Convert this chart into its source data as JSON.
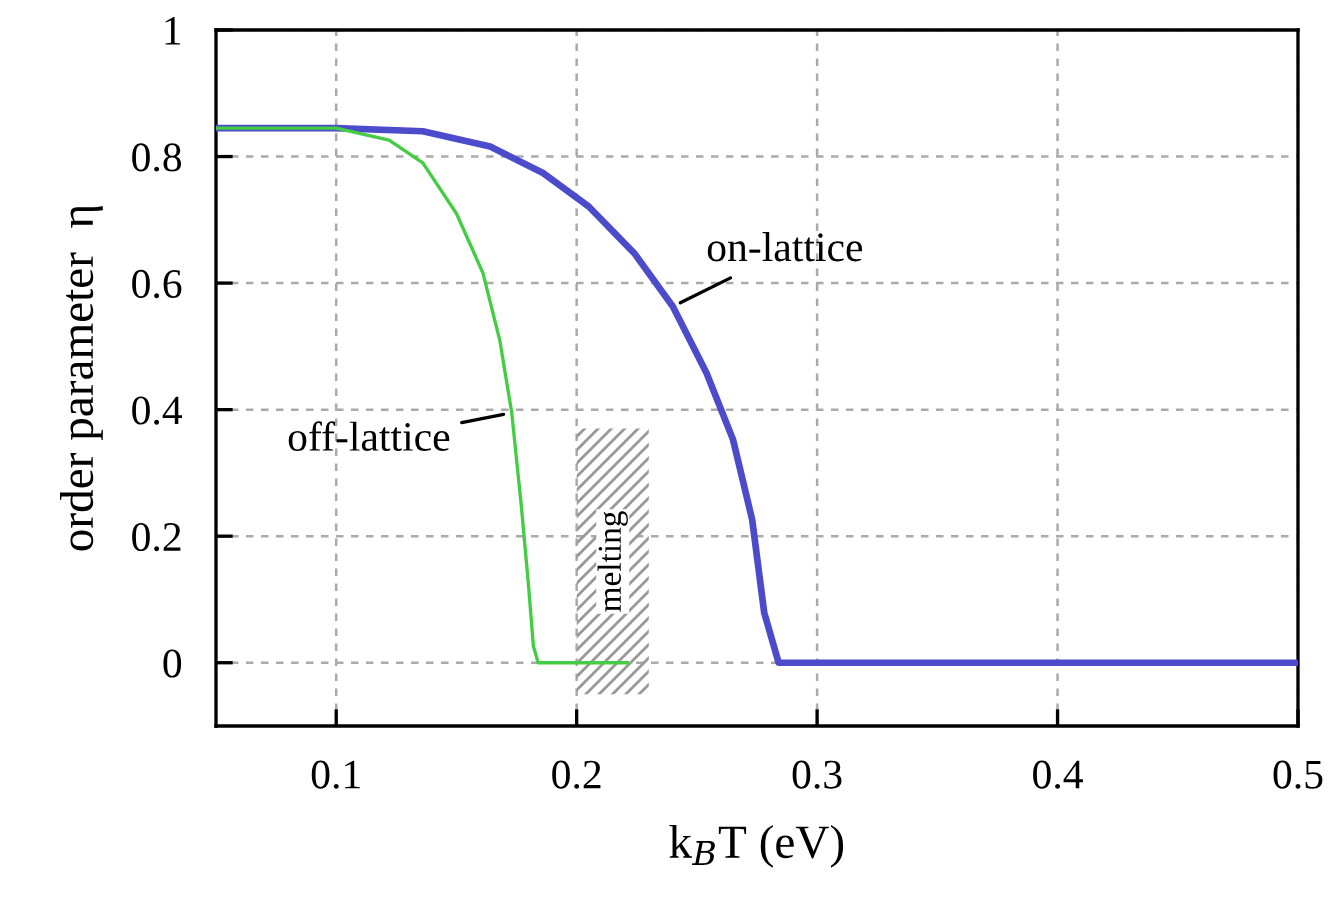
{
  "chart_data": {
    "type": "line",
    "xlabel": "k$_{B}$T (eV)",
    "ylabel": "order parameter  η",
    "xlim": [
      0.05,
      0.5
    ],
    "xticks": [
      0.1,
      0.2,
      0.3,
      0.4,
      0.5
    ],
    "ylim": [
      -0.1,
      1
    ],
    "yticks": [
      0,
      0.2,
      0.4,
      0.6,
      0.8,
      1
    ],
    "grid": true,
    "legend": false,
    "line_style": "solid",
    "series": [
      {
        "name": "off-lattice",
        "color": "#44cc44",
        "x": [
          0.05,
          0.1,
          0.122,
          0.136,
          0.15,
          0.161,
          0.168,
          0.173,
          0.177,
          0.18,
          0.182,
          0.184,
          0.221
        ],
        "values": [
          0.845,
          0.845,
          0.826,
          0.79,
          0.71,
          0.616,
          0.51,
          0.395,
          0.247,
          0.121,
          0.026,
          0,
          0
        ]
      },
      {
        "name": "on-lattice",
        "color": "#4b4bcc",
        "x": [
          0.05,
          0.1,
          0.136,
          0.164,
          0.186,
          0.205,
          0.224,
          0.24,
          0.254,
          0.265,
          0.273,
          0.278,
          0.284,
          0.5
        ],
        "values": [
          0.845,
          0.845,
          0.84,
          0.816,
          0.774,
          0.721,
          0.647,
          0.563,
          0.458,
          0.353,
          0.226,
          0.079,
          0,
          0
        ]
      }
    ],
    "bands": [
      {
        "axis": "x",
        "from": 0.2,
        "to": 0.23,
        "label": "melting",
        "color": "#999999"
      }
    ]
  }
}
